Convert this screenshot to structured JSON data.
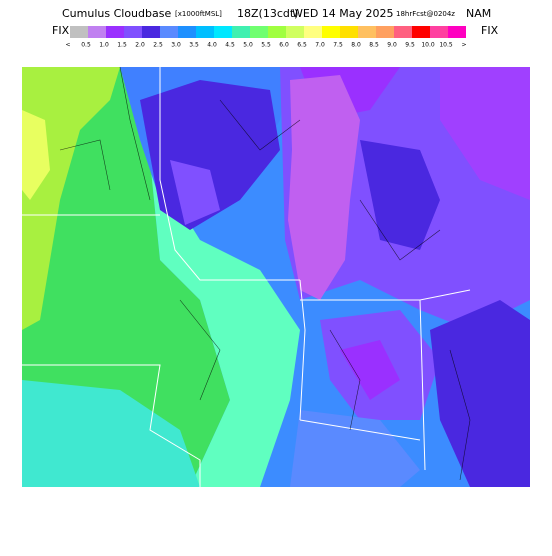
{
  "header": {
    "title": "Cumulus Cloudbase",
    "units": "[x1000ftMSL]",
    "time": "18Z(13cdt)",
    "date": "WED 14 May 2025",
    "forecast": "18hrFcst@0204z",
    "model": "NAM"
  },
  "legend": {
    "left_label": "FIX",
    "right_label": "FIX",
    "labels": [
      "<",
      "0.5",
      "1.0",
      "1.5",
      "2.0",
      "2.5",
      "3.0",
      "3.5",
      "4.0",
      "4.5",
      "5.0",
      "5.5",
      "6.0",
      "6.5",
      "7.0",
      "7.5",
      "8.0",
      "8.5",
      "9.0",
      "9.5",
      "10.0",
      "10.5",
      ">"
    ],
    "colors": [
      "#c0c0c0",
      "#c080f0",
      "#9a30ff",
      "#8050ff",
      "#4a28e0",
      "#5a8aff",
      "#1e90ff",
      "#00bfff",
      "#00e8ff",
      "#40f0b0",
      "#70ff70",
      "#a0ff40",
      "#d0ff60",
      "#ffff80",
      "#ffff00",
      "#ffe000",
      "#ffc060",
      "#ffa060",
      "#ff6080",
      "#ff0000",
      "#ff40a0",
      "#ff00c0"
    ]
  }
}
